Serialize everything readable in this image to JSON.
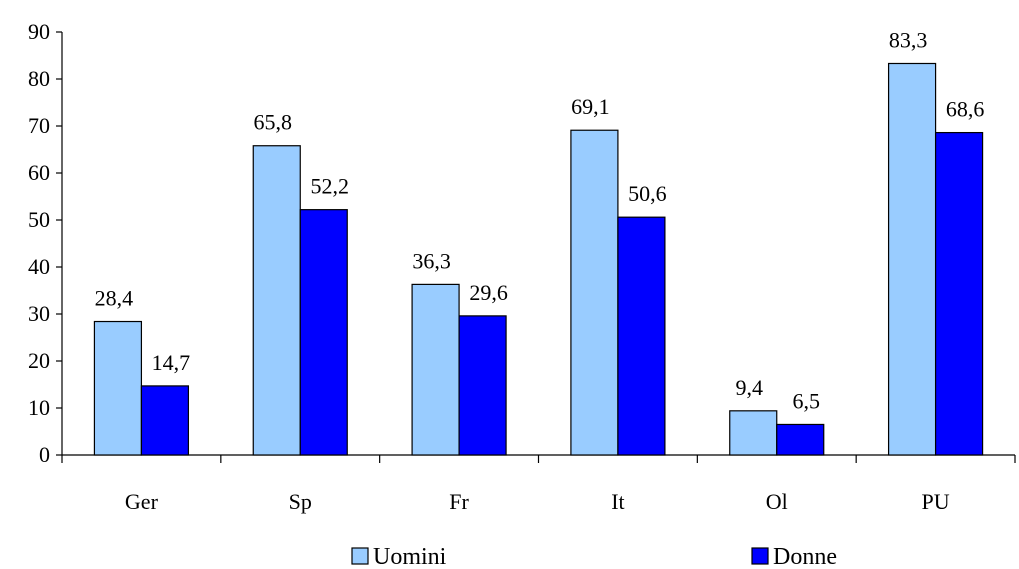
{
  "chart_data": {
    "type": "bar",
    "categories": [
      "Ger",
      "Sp",
      "Fr",
      "It",
      "Ol",
      "PU"
    ],
    "series": [
      {
        "name": "Uomini",
        "values": [
          28.4,
          65.8,
          36.3,
          69.1,
          9.4,
          83.3
        ],
        "labels": [
          "28,4",
          "65,8",
          "36,3",
          "69,1",
          "9,4",
          "83,3"
        ],
        "color": "#99ccff"
      },
      {
        "name": "Donne",
        "values": [
          14.7,
          52.2,
          29.6,
          50.6,
          6.5,
          68.6
        ],
        "labels": [
          "14,7",
          "52,2",
          "29,6",
          "50,6",
          "6,5",
          "68,6"
        ],
        "color": "#0000ff"
      }
    ],
    "ylim": [
      0,
      90
    ],
    "yticks": [
      0,
      10,
      20,
      30,
      40,
      50,
      60,
      70,
      80,
      90
    ],
    "grid": false,
    "legend_position": "bottom"
  }
}
